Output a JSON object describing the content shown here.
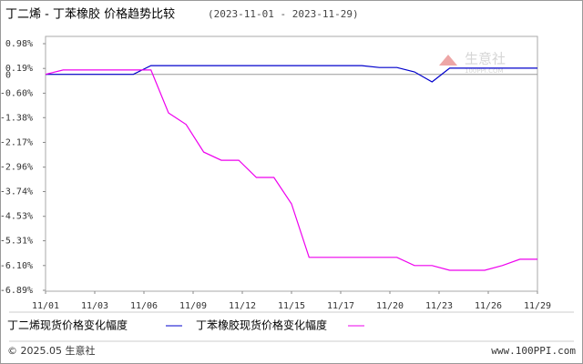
{
  "chart_data": {
    "type": "line",
    "title": "丁二烯 - 丁苯橡胶 价格趋势比较",
    "subtitle": "(2023-11-01 - 2023-11-29)",
    "x": [
      1,
      2,
      3,
      4,
      5,
      6,
      7,
      8,
      9,
      10,
      11,
      12,
      13,
      14,
      15,
      16,
      17,
      18,
      19,
      20,
      21,
      22,
      23,
      24,
      25,
      26,
      27,
      28,
      29
    ],
    "xlim": [
      1,
      29
    ],
    "xticks": [
      {
        "value": 1,
        "label": "11/01"
      },
      {
        "value": 3.8,
        "label": "11/03"
      },
      {
        "value": 6.6,
        "label": "11/06"
      },
      {
        "value": 9.4,
        "label": "11/09"
      },
      {
        "value": 12.2,
        "label": "11/12"
      },
      {
        "value": 15,
        "label": "11/15"
      },
      {
        "value": 17.8,
        "label": "11/17"
      },
      {
        "value": 20.6,
        "label": "11/20"
      },
      {
        "value": 23.4,
        "label": "11/23"
      },
      {
        "value": 26.2,
        "label": "11/26"
      },
      {
        "value": 29,
        "label": "11/29"
      }
    ],
    "ylim": [
      -6.89,
      0.98
    ],
    "yticks": [
      {
        "value": 0.98,
        "label": "0.98%"
      },
      {
        "value": 0.19,
        "label": "0.19%"
      },
      0,
      {
        "value": -0.6,
        "label": "-0.60%"
      },
      {
        "value": -1.38,
        "label": "-1.38%"
      },
      {
        "value": -2.17,
        "label": "-2.17%"
      },
      {
        "value": -2.96,
        "label": "-2.96%"
      },
      {
        "value": -3.74,
        "label": "-3.74%"
      },
      {
        "value": -4.53,
        "label": "-4.53%"
      },
      {
        "value": -5.31,
        "label": "-5.31%"
      },
      {
        "value": -6.1,
        "label": "-6.10%"
      },
      {
        "value": -6.89,
        "label": "-6.89%"
      }
    ],
    "series": [
      {
        "name": "丁二烯现货价格变化幅度",
        "color": "#0000cc",
        "values": [
          0,
          0,
          0,
          0,
          0,
          0,
          0.28,
          0.28,
          0.28,
          0.28,
          0.28,
          0.28,
          0.28,
          0.28,
          0.28,
          0.28,
          0.28,
          0.28,
          0.28,
          0.22,
          0.22,
          0.08,
          -0.24,
          0.2,
          0.2,
          0.2,
          0.2,
          0.2,
          0.2
        ]
      },
      {
        "name": "丁苯橡胶现货价格变化幅度",
        "color": "#ee00ee",
        "values": [
          0,
          0.14,
          0.14,
          0.14,
          0.14,
          0.14,
          0.14,
          -1.23,
          -1.6,
          -2.48,
          -2.74,
          -2.74,
          -3.29,
          -3.29,
          -4.13,
          -5.84,
          -5.84,
          -5.84,
          -5.84,
          -5.84,
          -5.84,
          -6.1,
          -6.1,
          -6.25,
          -6.25,
          -6.25,
          -6.1,
          -5.9,
          -5.9
        ]
      }
    ],
    "watermark": {
      "brand": "生意社",
      "site": "100PPI.COM"
    },
    "footer": {
      "left": "© 2025.05 生意社",
      "right": "www.100PPI.com"
    }
  }
}
